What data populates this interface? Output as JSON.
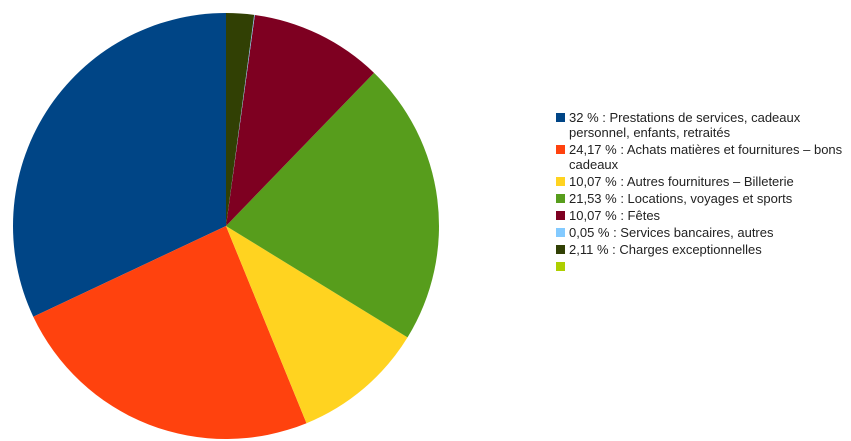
{
  "chart_data": {
    "type": "pie",
    "title": "",
    "slices": [
      {
        "label": "32 % : Prestations de services, cadeaux personnel, enfants, retraités",
        "value": 32,
        "color": "#004586"
      },
      {
        "label": "24,17 % : Achats matières et fournitures – bons cadeaux",
        "value": 24.17,
        "color": "#ff420e"
      },
      {
        "label": "10,07 % : Autres fournitures – Billeterie",
        "value": 10.07,
        "color": "#ffd320"
      },
      {
        "label": "21,53 % : Locations, voyages et sports",
        "value": 21.53,
        "color": "#579d1c"
      },
      {
        "label": "10,07 % : Fêtes",
        "value": 10.07,
        "color": "#7e0021"
      },
      {
        "label": "0,05 % : Services bancaires, autres",
        "value": 0.05,
        "color": "#83caff"
      },
      {
        "label": "2,11 % : Charges exceptionnelles",
        "value": 2.11,
        "color": "#314004"
      },
      {
        "label": "",
        "value": 0,
        "color": "#aecf00"
      }
    ],
    "legend_position": "right",
    "start_angle_deg": 0,
    "direction": "counterclockwise"
  }
}
